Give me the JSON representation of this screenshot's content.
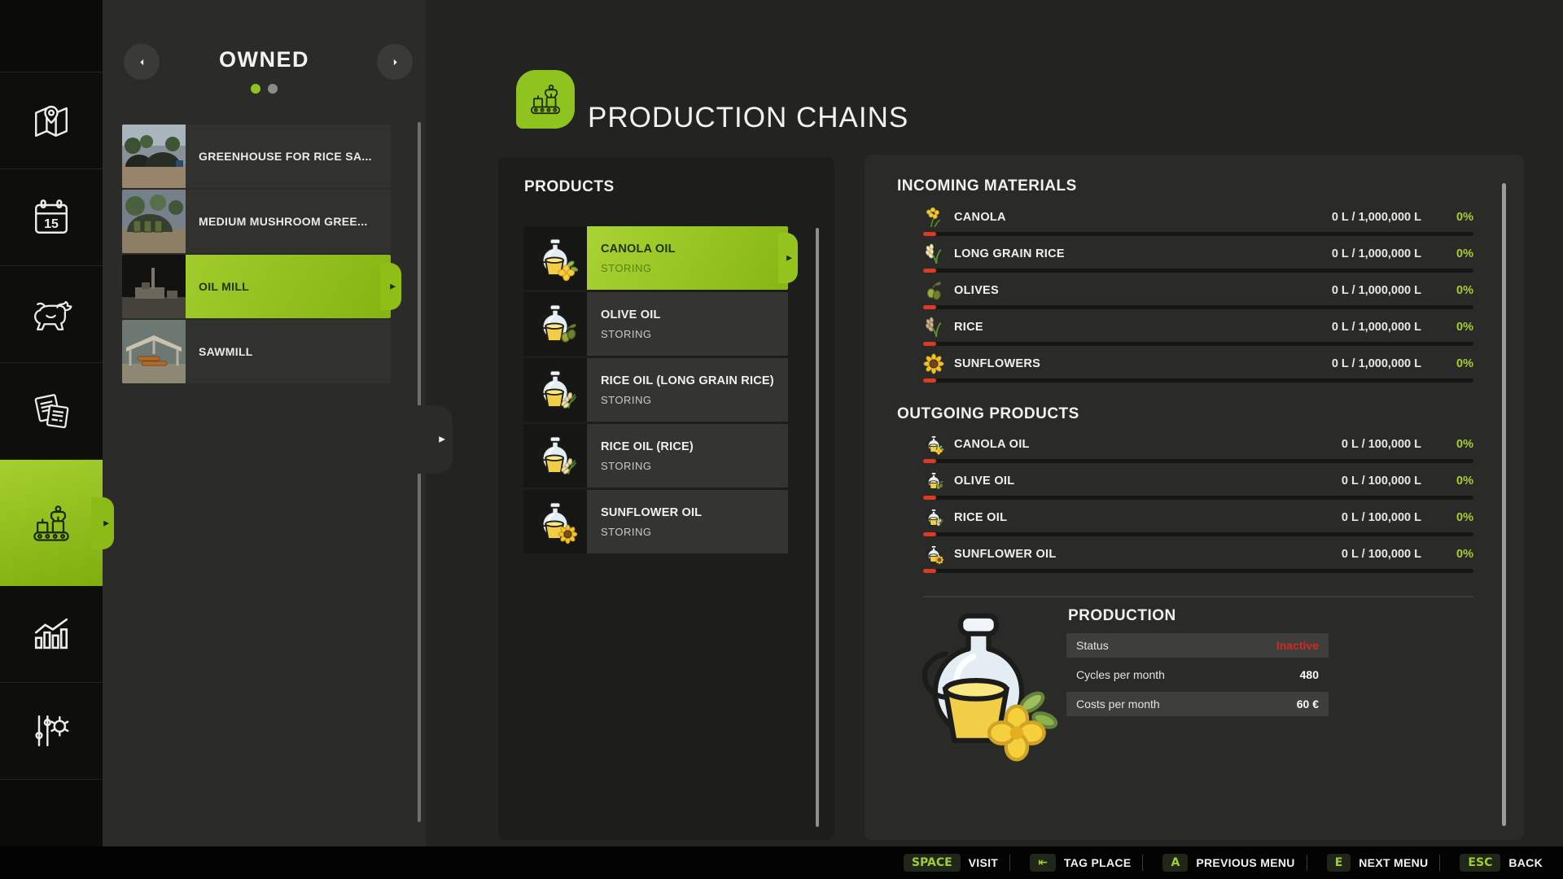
{
  "colors": {
    "accent": "#8fc31f",
    "inactive_red": "#d5291d",
    "progress_green": "#a5cf2c",
    "bar_red": "#dd3a24"
  },
  "sidebar": {
    "items": [
      {
        "name": "sidebar-item-map",
        "icon": "map-icon",
        "active": false
      },
      {
        "name": "sidebar-item-calendar",
        "icon": "calendar-icon",
        "active": false
      },
      {
        "name": "sidebar-item-animals",
        "icon": "animals-icon",
        "active": false
      },
      {
        "name": "sidebar-item-contracts",
        "icon": "contracts-icon",
        "active": false
      },
      {
        "name": "sidebar-item-production",
        "icon": "production-icon",
        "active": true
      },
      {
        "name": "sidebar-item-statistics",
        "icon": "statistics-icon",
        "active": false
      },
      {
        "name": "sidebar-item-settings",
        "icon": "settings-icon",
        "active": false
      }
    ]
  },
  "owned": {
    "title": "OWNED",
    "prev_icon": "caret-left-icon",
    "next_icon": "caret-right-icon",
    "pages": [
      {
        "active": true
      },
      {
        "active": false
      }
    ],
    "items": [
      {
        "label": "GREENHOUSE FOR RICE SA...",
        "thumb": "thumb-greenhouse",
        "selected": false
      },
      {
        "label": "MEDIUM MUSHROOM GREE...",
        "thumb": "thumb-mushroom",
        "selected": false
      },
      {
        "label": "OIL MILL",
        "thumb": "thumb-oilmill",
        "selected": true
      },
      {
        "label": "SAWMILL",
        "thumb": "thumb-sawmill",
        "selected": false
      }
    ]
  },
  "header": {
    "title": "PRODUCTION CHAINS",
    "icon": "production-icon"
  },
  "products": {
    "heading": "PRODUCTS",
    "items": [
      {
        "name": "CANOLA OIL",
        "status": "STORING",
        "icon": "oil-canola",
        "selected": true
      },
      {
        "name": "OLIVE OIL",
        "status": "STORING",
        "icon": "oil-olive",
        "selected": false
      },
      {
        "name": "RICE OIL (LONG GRAIN RICE)",
        "status": "STORING",
        "icon": "oil-rice",
        "selected": false
      },
      {
        "name": "RICE OIL (RICE)",
        "status": "STORING",
        "icon": "oil-rice",
        "selected": false
      },
      {
        "name": "SUNFLOWER OIL",
        "status": "STORING",
        "icon": "oil-sunflower",
        "selected": false
      }
    ]
  },
  "incoming": {
    "heading": "INCOMING MATERIALS",
    "rows": [
      {
        "name": "CANOLA",
        "icon": "crop-canola",
        "amount": "0 L / 1,000,000 L",
        "pct": "0%"
      },
      {
        "name": "LONG GRAIN RICE",
        "icon": "crop-longrain",
        "amount": "0 L / 1,000,000 L",
        "pct": "0%"
      },
      {
        "name": "OLIVES",
        "icon": "crop-olives",
        "amount": "0 L / 1,000,000 L",
        "pct": "0%"
      },
      {
        "name": "RICE",
        "icon": "crop-rice",
        "amount": "0 L / 1,000,000 L",
        "pct": "0%"
      },
      {
        "name": "SUNFLOWERS",
        "icon": "crop-sunflower",
        "amount": "0 L / 1,000,000 L",
        "pct": "0%"
      }
    ]
  },
  "outgoing": {
    "heading": "OUTGOING PRODUCTS",
    "rows": [
      {
        "name": "CANOLA OIL",
        "icon": "oil-canola",
        "amount": "0 L / 100,000 L",
        "pct": "0%"
      },
      {
        "name": "OLIVE OIL",
        "icon": "oil-olive",
        "amount": "0 L / 100,000 L",
        "pct": "0%"
      },
      {
        "name": "RICE OIL",
        "icon": "oil-rice",
        "amount": "0 L / 100,000 L",
        "pct": "0%"
      },
      {
        "name": "SUNFLOWER OIL",
        "icon": "oil-sunflower",
        "amount": "0 L / 100,000 L",
        "pct": "0%"
      }
    ]
  },
  "production": {
    "heading": "PRODUCTION",
    "image_icon": "oil-canola",
    "rows": [
      {
        "label": "Status",
        "value": "Inactive",
        "shaded": true,
        "red": true
      },
      {
        "label": "Cycles per month",
        "value": "480",
        "shaded": false,
        "red": false
      },
      {
        "label": "Costs per month",
        "value": "60 €",
        "shaded": true,
        "red": false
      }
    ]
  },
  "hotkeys": [
    {
      "key": "SPACE",
      "label": "VISIT"
    },
    {
      "key": "⇤",
      "label": "TAG PLACE"
    },
    {
      "key": "A",
      "label": "PREVIOUS MENU"
    },
    {
      "key": "E",
      "label": "NEXT MENU"
    },
    {
      "key": "ESC",
      "label": "BACK"
    }
  ]
}
